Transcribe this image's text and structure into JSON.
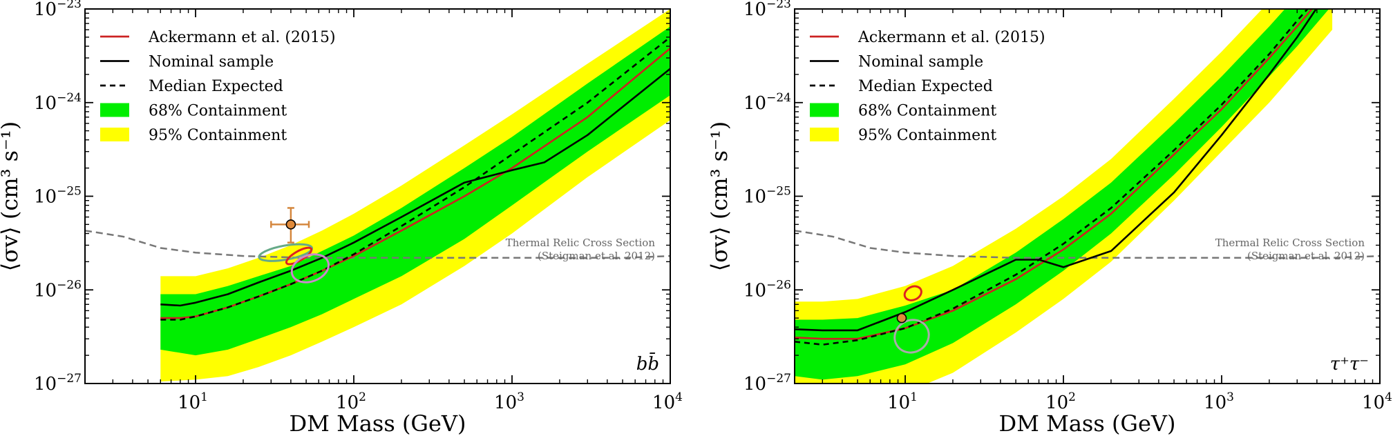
{
  "chart_data": [
    {
      "type": "line",
      "xscale": "log",
      "yscale": "log",
      "xlim": [
        2,
        10000
      ],
      "ylim": [
        1e-27,
        1e-23
      ],
      "xlabel": "DM Mass (GeV)",
      "ylabel": "⟨σv⟩ (cm³ s⁻¹)",
      "x_ticks": [
        {
          "value": 10,
          "label": "10"
        },
        {
          "value": 100,
          "label": "10"
        },
        {
          "value": 1000,
          "label": "10"
        },
        {
          "value": 10000,
          "label": "10"
        }
      ],
      "x_tick_exp": [
        "1",
        "2",
        "3",
        "4"
      ],
      "y_ticks": [
        {
          "value": 1e-27,
          "label": "10"
        },
        {
          "value": 1e-26,
          "label": "10"
        },
        {
          "value": 1e-25,
          "label": "10"
        },
        {
          "value": 1e-24,
          "label": "10"
        },
        {
          "value": 1e-23,
          "label": "10"
        }
      ],
      "y_tick_exp": [
        "−27",
        "−26",
        "−25",
        "−24",
        "−23"
      ],
      "channel_label": "bb̄",
      "thermal_relic_label": [
        "Thermal Relic Cross Section",
        "(Steigman et al. 2012)"
      ],
      "legend": {
        "position": "top-left",
        "entries": [
          {
            "label": "Ackermann et al. (2015)",
            "style": "red-line"
          },
          {
            "label": "Nominal sample",
            "style": "black-line"
          },
          {
            "label": "Median Expected",
            "style": "dashed-line"
          },
          {
            "label": "68% Containment",
            "style": "green-band"
          },
          {
            "label": "95% Containment",
            "style": "yellow-band"
          }
        ]
      },
      "band95": {
        "x": [
          6,
          10,
          16,
          25,
          40,
          63,
          100,
          200,
          500,
          1000,
          3000,
          10000
        ],
        "lower": [
          1.05e-27,
          1.1e-27,
          1.2e-27,
          1.5e-27,
          2e-27,
          2.8e-27,
          4e-27,
          7e-27,
          1.8e-26,
          4e-26,
          1.6e-25,
          6.5e-25
        ],
        "upper": [
          1.4e-26,
          1.4e-26,
          1.7e-26,
          2.2e-26,
          3e-26,
          4.3e-26,
          6.5e-26,
          1.3e-25,
          3.5e-25,
          7.5e-25,
          2.6e-24,
          1e-23
        ]
      },
      "band68": {
        "x": [
          6,
          10,
          16,
          25,
          40,
          63,
          100,
          200,
          500,
          1000,
          3000,
          10000
        ],
        "lower": [
          2.3e-27,
          2e-27,
          2.3e-27,
          3e-27,
          4e-27,
          5.5e-27,
          8e-27,
          1.4e-26,
          3.5e-26,
          8e-26,
          3e-25,
          1.2e-24
        ],
        "upper": [
          9e-27,
          9e-27,
          1.1e-26,
          1.4e-26,
          1.8e-26,
          2.6e-26,
          3.8e-26,
          7.5e-26,
          2e-25,
          4.3e-25,
          1.6e-24,
          6.5e-24
        ]
      },
      "series": [
        {
          "name": "Ackermann et al. (2015)",
          "color": "#cc2222",
          "dash": "",
          "x": [
            6,
            8,
            10,
            16,
            25,
            40,
            63,
            100,
            200,
            500,
            1000,
            3000,
            10000
          ],
          "y": [
            5e-27,
            5e-27,
            5.2e-27,
            6.5e-27,
            8.5e-27,
            1.15e-26,
            1.6e-26,
            2.3e-26,
            4.3e-26,
            1e-25,
            2e-25,
            7e-25,
            3.8e-24
          ]
        },
        {
          "name": "Nominal sample",
          "color": "#000000",
          "dash": "",
          "x": [
            6,
            8,
            10,
            16,
            25,
            40,
            63,
            100,
            200,
            500,
            1000,
            1600,
            3000,
            10000
          ],
          "y": [
            7e-27,
            6.8e-27,
            7.3e-27,
            9e-27,
            1.2e-26,
            1.6e-26,
            2.2e-26,
            3.2e-26,
            6e-26,
            1.4e-25,
            1.9e-25,
            2.3e-25,
            4.5e-25,
            2.3e-24
          ]
        },
        {
          "name": "Median Expected",
          "color": "#000000",
          "dash": "8,6",
          "x": [
            6,
            8,
            10,
            16,
            25,
            40,
            63,
            100,
            200,
            500,
            1000,
            3000,
            10000
          ],
          "y": [
            4.8e-27,
            4.8e-27,
            5.2e-27,
            6.5e-27,
            8.5e-27,
            1.15e-26,
            1.6e-26,
            2.4e-26,
            4.8e-26,
            1.25e-25,
            2.8e-25,
            1e-24,
            5e-24
          ]
        }
      ],
      "thermal_relic": {
        "color": "#777777",
        "x": [
          2,
          3.5,
          6,
          10,
          20,
          50,
          100,
          500,
          1000,
          5000,
          10000
        ],
        "y": [
          4.3e-26,
          3.7e-26,
          2.8e-26,
          2.5e-26,
          2.3e-26,
          2.2e-26,
          2.2e-26,
          2.2e-26,
          2.2e-26,
          2.2e-26,
          2.3e-26
        ]
      },
      "fit_point": {
        "x": 40,
        "y": 5e-26,
        "xerr": [
          30,
          52
        ],
        "yerr": [
          3.2e-26,
          7.5e-26
        ],
        "fill": "#e08a3a",
        "errcolor": "#d4863d"
      },
      "ellipses": [
        {
          "x": 37,
          "y": 2.5e-26,
          "rx_dex": 0.17,
          "ry_dex": 0.075,
          "angle": -10,
          "color": "#66aa88"
        },
        {
          "x": 45,
          "y": 2.3e-26,
          "rx_dex": 0.09,
          "ry_dex": 0.05,
          "angle": -30,
          "color": "#dd2222"
        },
        {
          "x": 53,
          "y": 1.7e-26,
          "rx_dex": 0.12,
          "ry_dex": 0.14,
          "angle": -20,
          "color": "#cc88cc"
        }
      ]
    },
    {
      "type": "line",
      "xscale": "log",
      "yscale": "log",
      "xlim": [
        2,
        10000
      ],
      "ylim": [
        1e-27,
        1e-23
      ],
      "xlabel": "DM Mass (GeV)",
      "ylabel": "⟨σv⟩ (cm³ s⁻¹)",
      "x_ticks": [
        {
          "value": 10,
          "label": "10"
        },
        {
          "value": 100,
          "label": "10"
        },
        {
          "value": 1000,
          "label": "10"
        },
        {
          "value": 10000,
          "label": "10"
        }
      ],
      "x_tick_exp": [
        "1",
        "2",
        "3",
        "4"
      ],
      "y_ticks": [
        {
          "value": 1e-27,
          "label": "10"
        },
        {
          "value": 1e-26,
          "label": "10"
        },
        {
          "value": 1e-25,
          "label": "10"
        },
        {
          "value": 1e-24,
          "label": "10"
        },
        {
          "value": 1e-23,
          "label": "10"
        }
      ],
      "y_tick_exp": [
        "−27",
        "−26",
        "−25",
        "−24",
        "−23"
      ],
      "channel_label": "τ⁺τ⁻",
      "thermal_relic_label": [
        "Thermal Relic Cross Section",
        "(Steigman et al. 2012)"
      ],
      "legend": {
        "position": "top-left",
        "entries": [
          {
            "label": "Ackermann et al. (2015)",
            "style": "red-line"
          },
          {
            "label": "Nominal sample",
            "style": "black-line"
          },
          {
            "label": "Median Expected",
            "style": "dashed-line"
          },
          {
            "label": "68% Containment",
            "style": "green-band"
          },
          {
            "label": "95% Containment",
            "style": "yellow-band"
          }
        ]
      },
      "band95": {
        "x": [
          2,
          3,
          5,
          10,
          20,
          50,
          100,
          200,
          500,
          1000,
          2000,
          3000,
          5000
        ],
        "lower": [
          5.5e-28,
          5.5e-28,
          6e-28,
          8e-28,
          1.3e-27,
          3.5e-27,
          8e-27,
          2e-26,
          9e-26,
          3e-25,
          1e-24,
          2.2e-24,
          6e-24
        ],
        "upper": [
          7.5e-27,
          7.5e-27,
          8e-27,
          1.1e-26,
          1.8e-26,
          4.5e-26,
          1e-25,
          2.5e-25,
          1.1e-24,
          3.5e-24,
          1.2e-23,
          2.5e-23,
          7e-23
        ]
      },
      "band68": {
        "x": [
          2,
          3,
          5,
          10,
          20,
          50,
          100,
          200,
          500,
          1000,
          2000,
          3000,
          5000
        ],
        "lower": [
          1.2e-27,
          1.1e-27,
          1.2e-27,
          1.6e-27,
          2.7e-27,
          7e-27,
          1.6e-26,
          4e-26,
          1.7e-25,
          5.5e-25,
          1.9e-24,
          4e-24,
          1.1e-23
        ],
        "upper": [
          4.8e-27,
          4.8e-27,
          5e-27,
          6.8e-27,
          1e-26,
          2.5e-26,
          5.7e-26,
          1.4e-25,
          6e-25,
          1.9e-24,
          6.5e-24,
          1.4e-23,
          4e-23
        ]
      },
      "series": [
        {
          "name": "Ackermann et al. (2015)",
          "color": "#cc2222",
          "dash": "",
          "x": [
            2,
            3,
            5,
            10,
            20,
            50,
            100,
            200,
            500,
            1000,
            2000,
            3000,
            5000
          ],
          "y": [
            3.1e-27,
            3e-27,
            3e-27,
            3.9e-27,
            6e-27,
            1.3e-26,
            2.7e-26,
            6.5e-26,
            2.8e-25,
            8.5e-25,
            3e-24,
            6.5e-24,
            1.8e-23
          ]
        },
        {
          "name": "Nominal sample",
          "color": "#000000",
          "dash": "",
          "x": [
            2,
            3,
            5,
            10,
            20,
            50,
            70,
            100,
            200,
            500,
            1000,
            2000,
            3000,
            5000
          ],
          "y": [
            3.8e-27,
            3.7e-27,
            3.7e-27,
            5.8e-27,
            1e-26,
            2.1e-26,
            2.1e-26,
            1.75e-26,
            2.6e-26,
            1.1e-25,
            4.5e-25,
            2e-24,
            5e-24,
            1.8e-23
          ]
        },
        {
          "name": "Median Expected",
          "color": "#000000",
          "dash": "8,6",
          "x": [
            2,
            3,
            5,
            10,
            20,
            50,
            100,
            200,
            500,
            1000,
            2000,
            3000,
            5000
          ],
          "y": [
            2.8e-27,
            2.6e-27,
            2.9e-27,
            3.9e-27,
            6.3e-27,
            1.45e-26,
            3.1e-26,
            7.5e-26,
            3.1e-25,
            9.5e-25,
            3.3e-24,
            7.5e-24,
            2e-23
          ]
        }
      ],
      "thermal_relic": {
        "color": "#777777",
        "x": [
          2,
          3.5,
          6,
          10,
          20,
          50,
          100,
          500,
          1000,
          5000,
          10000
        ],
        "y": [
          4.3e-26,
          3.7e-26,
          2.8e-26,
          2.5e-26,
          2.3e-26,
          2.2e-26,
          2.2e-26,
          2.2e-26,
          2.2e-26,
          2.2e-26,
          2.3e-26
        ]
      },
      "fit_point": {
        "x": 9.5,
        "y": 5e-27,
        "xerr": null,
        "yerr": null,
        "fill": "#e08a3a",
        "errcolor": "#d4863d"
      },
      "ellipses": [
        {
          "x": 11.2,
          "y": 9.2e-27,
          "rx_dex": 0.055,
          "ry_dex": 0.07,
          "angle": -25,
          "color": "#dd2222"
        },
        {
          "x": 11.0,
          "y": 3.2e-27,
          "rx_dex": 0.11,
          "ry_dex": 0.17,
          "angle": -30,
          "color": "#aaaaaa"
        }
      ]
    }
  ]
}
